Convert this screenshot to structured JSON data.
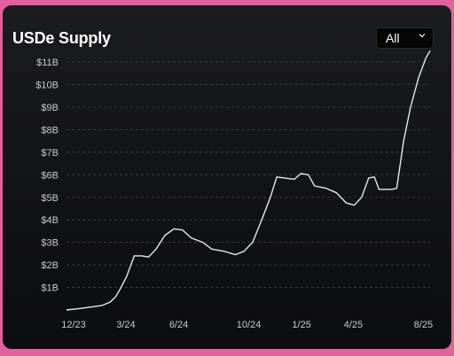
{
  "header": {
    "title": "USDe Supply",
    "range_value": "All",
    "range_icon": "chevron-down-icon"
  },
  "colors": {
    "line": "#e6e8f2",
    "grid": "#3a3b3f",
    "tick_text": "#c9cacd"
  },
  "chart_data": {
    "type": "line",
    "title": "USDe Supply",
    "xlabel": "",
    "ylabel": "",
    "x_ticks": [
      "12/23",
      "3/24",
      "6/24",
      "10/24",
      "1/25",
      "4/25",
      "8/25"
    ],
    "y_ticks": [
      "$1B",
      "$2B",
      "$3B",
      "$4B",
      "$5B",
      "$6B",
      "$7B",
      "$8B",
      "$9B",
      "$10B",
      "$11B"
    ],
    "ylim": [
      0,
      11.5
    ],
    "xlim": [
      "2023-12-01",
      "2025-08-25"
    ],
    "grid": true,
    "series": [
      {
        "values": [
          [
            "2023-12-01",
            0.0
          ],
          [
            "2023-12-20",
            0.05
          ],
          [
            "2024-01-10",
            0.12
          ],
          [
            "2024-02-01",
            0.2
          ],
          [
            "2024-02-15",
            0.35
          ],
          [
            "2024-02-25",
            0.6
          ],
          [
            "2024-03-05",
            1.0
          ],
          [
            "2024-03-15",
            1.5
          ],
          [
            "2024-03-28",
            2.4
          ],
          [
            "2024-04-10",
            2.4
          ],
          [
            "2024-04-22",
            2.35
          ],
          [
            "2024-05-05",
            2.7
          ],
          [
            "2024-05-20",
            3.3
          ],
          [
            "2024-06-05",
            3.6
          ],
          [
            "2024-06-20",
            3.55
          ],
          [
            "2024-07-05",
            3.2
          ],
          [
            "2024-07-25",
            3.0
          ],
          [
            "2024-08-10",
            2.7
          ],
          [
            "2024-09-01",
            2.6
          ],
          [
            "2024-09-20",
            2.45
          ],
          [
            "2024-10-05",
            2.6
          ],
          [
            "2024-10-20",
            3.0
          ],
          [
            "2024-11-05",
            4.0
          ],
          [
            "2024-11-20",
            5.0
          ],
          [
            "2024-12-01",
            5.9
          ],
          [
            "2024-12-15",
            5.85
          ],
          [
            "2025-01-01",
            5.8
          ],
          [
            "2025-01-12",
            6.05
          ],
          [
            "2025-01-25",
            6.0
          ],
          [
            "2025-02-05",
            5.5
          ],
          [
            "2025-02-25",
            5.4
          ],
          [
            "2025-03-15",
            5.2
          ],
          [
            "2025-04-01",
            4.75
          ],
          [
            "2025-04-15",
            4.65
          ],
          [
            "2025-04-28",
            5.0
          ],
          [
            "2025-05-10",
            5.85
          ],
          [
            "2025-05-20",
            5.9
          ],
          [
            "2025-05-28",
            5.35
          ],
          [
            "2025-06-20",
            5.35
          ],
          [
            "2025-06-28",
            5.4
          ],
          [
            "2025-07-10",
            7.5
          ],
          [
            "2025-07-22",
            9.0
          ],
          [
            "2025-08-05",
            10.3
          ],
          [
            "2025-08-18",
            11.2
          ],
          [
            "2025-08-25",
            11.5
          ]
        ]
      }
    ]
  }
}
